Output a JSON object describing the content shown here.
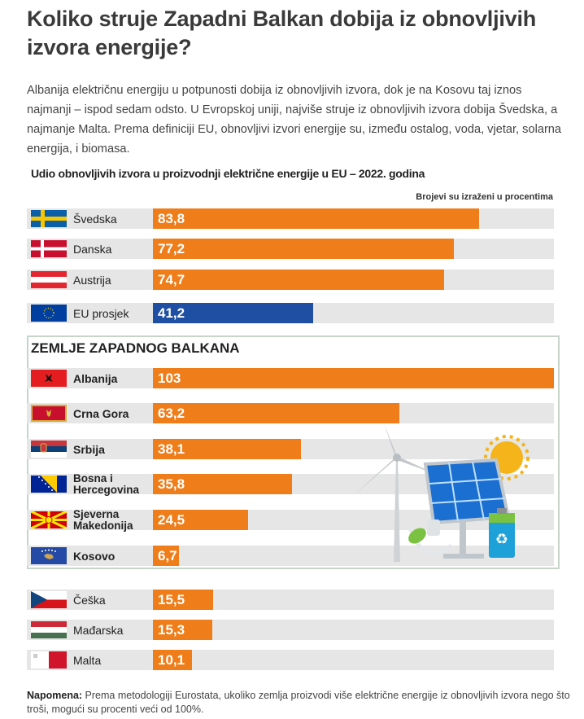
{
  "title": "Koliko struje Zapadni Balkan dobija iz obnovljivih izvora energije?",
  "intro": "Albanija električnu energiju u potpunosti dobija iz obnovljivih izvora, dok je na Kosovu taj iznos najmanji – ispod sedam odsto. U Evropskoj uniji, najviše struje iz obnovljivih izvora dobija Švedska, a najmanje Malta. Prema definiciji EU, obnovljivi izvori energije su, između ostalog, voda, vjetar, solarna energija, i biomasa.",
  "colors": {
    "bar": "#ef7d1a",
    "eu_bar": "#1e4fa3",
    "track": "#e6e6e6",
    "box_border": "#c7d4c9"
  },
  "chart_data": {
    "type": "bar",
    "orientation": "horizontal",
    "title": "Udio obnovljivih izvora u proizvodnji električne energije u EU – 2022. godina",
    "units_note": "Brojevi su izraženi u procentima",
    "xlim": [
      0,
      103
    ],
    "group_title": "ZEMLJE ZAPADNOG BALKANA",
    "categories": [
      "Švedska",
      "Danska",
      "Austrija",
      "EU prosjek",
      "Albanija",
      "Crna Gora",
      "Srbija",
      "Bosna i Hercegovina",
      "Sjeverna Makedonija",
      "Kosovo",
      "Češka",
      "Mađarska",
      "Malta"
    ],
    "values": [
      83.8,
      77.2,
      74.7,
      41.2,
      103,
      63.2,
      38.1,
      35.8,
      24.5,
      6.7,
      15.5,
      15.3,
      10.1
    ],
    "value_labels": [
      "83,8",
      "77,2",
      "74,7",
      "41,2",
      "103",
      "63,2",
      "38,1",
      "35,8",
      "24,5",
      "6,7",
      "15,5",
      "15,3",
      "10,1"
    ],
    "flag_icons": [
      "sweden-flag-icon",
      "denmark-flag-icon",
      "austria-flag-icon",
      "eu-flag-icon",
      "albania-flag-icon",
      "montenegro-flag-icon",
      "serbia-flag-icon",
      "bosnia-flag-icon",
      "north-macedonia-flag-icon",
      "kosovo-flag-icon",
      "czechia-flag-icon",
      "hungary-flag-icon",
      "malta-flag-icon"
    ]
  },
  "note": {
    "label": "Napomena:",
    "text": " Prema metodologiji Eurostata, ukoliko zemlja proizvodi više električne energije iz obnovljivih izvora nego što troši, mogući su procenti veći od 100%."
  }
}
